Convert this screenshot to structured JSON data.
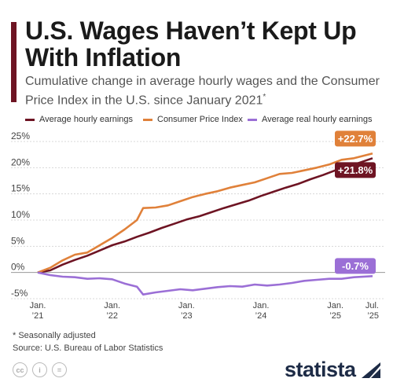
{
  "header": {
    "title": "U.S. Wages Haven’t Kept Up With Inflation",
    "subtitle": "Cumulative change in average hourly wages and the Consumer Price Index in the U.S. since January 2021",
    "subtitle_marker": "*"
  },
  "colors": {
    "earnings": "#6e1423",
    "cpi": "#e0813a",
    "real": "#9b6fd6",
    "title_bar": "#6e1423",
    "brand": "#1d2b46"
  },
  "chart_data": {
    "type": "line",
    "ylim": [
      -5,
      25
    ],
    "yticks": [
      -5,
      0,
      5,
      10,
      15,
      20,
      25
    ],
    "ytick_labels": [
      "-5%",
      "0%",
      "5%",
      "10%",
      "15%",
      "20%",
      "25%"
    ],
    "x_range": [
      "2021-01",
      "2025-07"
    ],
    "xticks": [
      {
        "x": "2021-01",
        "line1": "Jan.",
        "line2": "’21"
      },
      {
        "x": "2022-01",
        "line1": "Jan.",
        "line2": "’22"
      },
      {
        "x": "2023-01",
        "line1": "Jan.",
        "line2": "’23"
      },
      {
        "x": "2024-01",
        "line1": "Jan.",
        "line2": "’24"
      },
      {
        "x": "2025-01",
        "line1": "Jan.",
        "line2": "’25"
      },
      {
        "x": "2025-07",
        "line1": "Jul.",
        "line2": "’25"
      }
    ],
    "series": [
      {
        "name": "Average hourly earnings",
        "color_key": "earnings",
        "end_label": "+21.8%",
        "points": [
          [
            "2021-01",
            0
          ],
          [
            "2021-03",
            0.4
          ],
          [
            "2021-05",
            1.5
          ],
          [
            "2021-07",
            2.4
          ],
          [
            "2021-09",
            3.2
          ],
          [
            "2021-11",
            4.2
          ],
          [
            "2022-01",
            5.2
          ],
          [
            "2022-03",
            5.9
          ],
          [
            "2022-05",
            6.8
          ],
          [
            "2022-07",
            7.6
          ],
          [
            "2022-09",
            8.5
          ],
          [
            "2022-11",
            9.3
          ],
          [
            "2023-01",
            10.1
          ],
          [
            "2023-03",
            10.7
          ],
          [
            "2023-05",
            11.5
          ],
          [
            "2023-07",
            12.3
          ],
          [
            "2023-09",
            13.0
          ],
          [
            "2023-11",
            13.7
          ],
          [
            "2024-01",
            14.6
          ],
          [
            "2024-03",
            15.4
          ],
          [
            "2024-05",
            16.2
          ],
          [
            "2024-07",
            16.9
          ],
          [
            "2024-09",
            17.8
          ],
          [
            "2024-11",
            18.6
          ],
          [
            "2025-01",
            19.5
          ],
          [
            "2025-03",
            20.2
          ],
          [
            "2025-05",
            21.0
          ],
          [
            "2025-07",
            21.8
          ]
        ]
      },
      {
        "name": "Consumer Price Index",
        "color_key": "cpi",
        "end_label": "+22.7%",
        "points": [
          [
            "2021-01",
            0
          ],
          [
            "2021-03",
            0.9
          ],
          [
            "2021-05",
            2.3
          ],
          [
            "2021-07",
            3.4
          ],
          [
            "2021-09",
            3.8
          ],
          [
            "2021-11",
            5.2
          ],
          [
            "2022-01",
            6.6
          ],
          [
            "2022-03",
            8.2
          ],
          [
            "2022-05",
            10.0
          ],
          [
            "2022-06",
            12.3
          ],
          [
            "2022-08",
            12.4
          ],
          [
            "2022-10",
            12.8
          ],
          [
            "2022-12",
            13.6
          ],
          [
            "2023-02",
            14.4
          ],
          [
            "2023-04",
            15.0
          ],
          [
            "2023-06",
            15.5
          ],
          [
            "2023-08",
            16.2
          ],
          [
            "2023-10",
            16.7
          ],
          [
            "2023-12",
            17.2
          ],
          [
            "2024-02",
            18.0
          ],
          [
            "2024-04",
            18.8
          ],
          [
            "2024-06",
            19.0
          ],
          [
            "2024-08",
            19.5
          ],
          [
            "2024-10",
            20.0
          ],
          [
            "2024-12",
            20.6
          ],
          [
            "2025-02",
            21.5
          ],
          [
            "2025-04",
            21.8
          ],
          [
            "2025-07",
            22.7
          ]
        ]
      },
      {
        "name": "Average real hourly earnings",
        "color_key": "real",
        "end_label": "-0.7%",
        "points": [
          [
            "2021-01",
            0
          ],
          [
            "2021-03",
            -0.5
          ],
          [
            "2021-05",
            -0.8
          ],
          [
            "2021-07",
            -0.9
          ],
          [
            "2021-09",
            -1.2
          ],
          [
            "2021-11",
            -1.1
          ],
          [
            "2022-01",
            -1.3
          ],
          [
            "2022-03",
            -2.1
          ],
          [
            "2022-05",
            -2.7
          ],
          [
            "2022-06",
            -4.2
          ],
          [
            "2022-08",
            -3.8
          ],
          [
            "2022-10",
            -3.5
          ],
          [
            "2022-12",
            -3.2
          ],
          [
            "2023-02",
            -3.4
          ],
          [
            "2023-04",
            -3.1
          ],
          [
            "2023-06",
            -2.8
          ],
          [
            "2023-08",
            -2.6
          ],
          [
            "2023-10",
            -2.7
          ],
          [
            "2023-12",
            -2.3
          ],
          [
            "2024-02",
            -2.5
          ],
          [
            "2024-04",
            -2.3
          ],
          [
            "2024-06",
            -2.0
          ],
          [
            "2024-08",
            -1.6
          ],
          [
            "2024-10",
            -1.4
          ],
          [
            "2024-12",
            -1.2
          ],
          [
            "2025-02",
            -1.2
          ],
          [
            "2025-04",
            -0.9
          ],
          [
            "2025-07",
            -0.7
          ]
        ]
      }
    ],
    "grid": true,
    "legend_position": "top"
  },
  "footer": {
    "footnote": "* Seasonally adjusted",
    "source": "Source: U.S. Bureau of Labor Statistics",
    "brand": "statista",
    "license_icons": [
      "cc-icon",
      "person-icon",
      "equals-icon"
    ],
    "license_glyphs": [
      "cc",
      "i",
      "="
    ]
  }
}
